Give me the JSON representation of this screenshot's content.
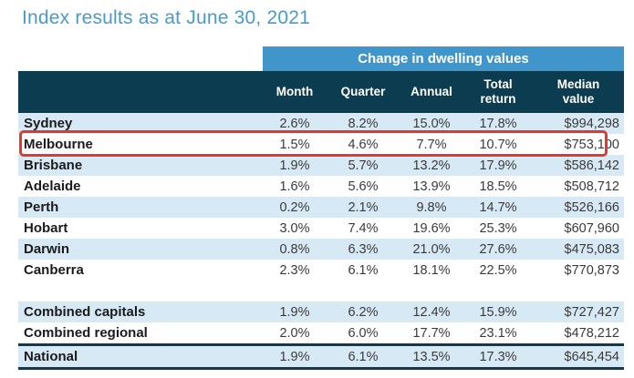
{
  "title": "Index results as at June 30, 2021",
  "colors": {
    "title_text": "#4a9ac9",
    "banner_bg": "#4095cb",
    "header_bg": "#0b3c50",
    "row_shade": "#d8e9f6",
    "highlight_border": "#e03a2e"
  },
  "table": {
    "banner": "Change in dwelling values",
    "columns": [
      "Month",
      "Quarter",
      "Annual",
      "Total return",
      "Median value"
    ],
    "highlighted_row": "Melbourne",
    "rows": [
      {
        "label": "Sydney",
        "month": "2.6%",
        "quarter": "8.2%",
        "annual": "15.0%",
        "total_return": "17.8%",
        "median_value": "$994,298"
      },
      {
        "label": "Melbourne",
        "month": "1.5%",
        "quarter": "4.6%",
        "annual": "7.7%",
        "total_return": "10.7%",
        "median_value": "$753,100"
      },
      {
        "label": "Brisbane",
        "month": "1.9%",
        "quarter": "5.7%",
        "annual": "13.2%",
        "total_return": "17.9%",
        "median_value": "$586,142"
      },
      {
        "label": "Adelaide",
        "month": "1.6%",
        "quarter": "5.6%",
        "annual": "13.9%",
        "total_return": "18.5%",
        "median_value": "$508,712"
      },
      {
        "label": "Perth",
        "month": "0.2%",
        "quarter": "2.1%",
        "annual": "9.8%",
        "total_return": "14.7%",
        "median_value": "$526,166"
      },
      {
        "label": "Hobart",
        "month": "3.0%",
        "quarter": "7.4%",
        "annual": "19.6%",
        "total_return": "25.3%",
        "median_value": "$607,960"
      },
      {
        "label": "Darwin",
        "month": "0.8%",
        "quarter": "6.3%",
        "annual": "21.0%",
        "total_return": "27.6%",
        "median_value": "$475,083"
      },
      {
        "label": "Canberra",
        "month": "2.3%",
        "quarter": "6.1%",
        "annual": "18.1%",
        "total_return": "22.5%",
        "median_value": "$770,873"
      },
      {
        "label": "Combined capitals",
        "month": "1.9%",
        "quarter": "6.2%",
        "annual": "12.4%",
        "total_return": "15.9%",
        "median_value": "$727,427"
      },
      {
        "label": "Combined regional",
        "month": "2.0%",
        "quarter": "6.0%",
        "annual": "17.7%",
        "total_return": "23.1%",
        "median_value": "$478,212"
      },
      {
        "label": "National",
        "month": "1.9%",
        "quarter": "6.1%",
        "annual": "13.5%",
        "total_return": "17.3%",
        "median_value": "$645,454"
      }
    ]
  }
}
